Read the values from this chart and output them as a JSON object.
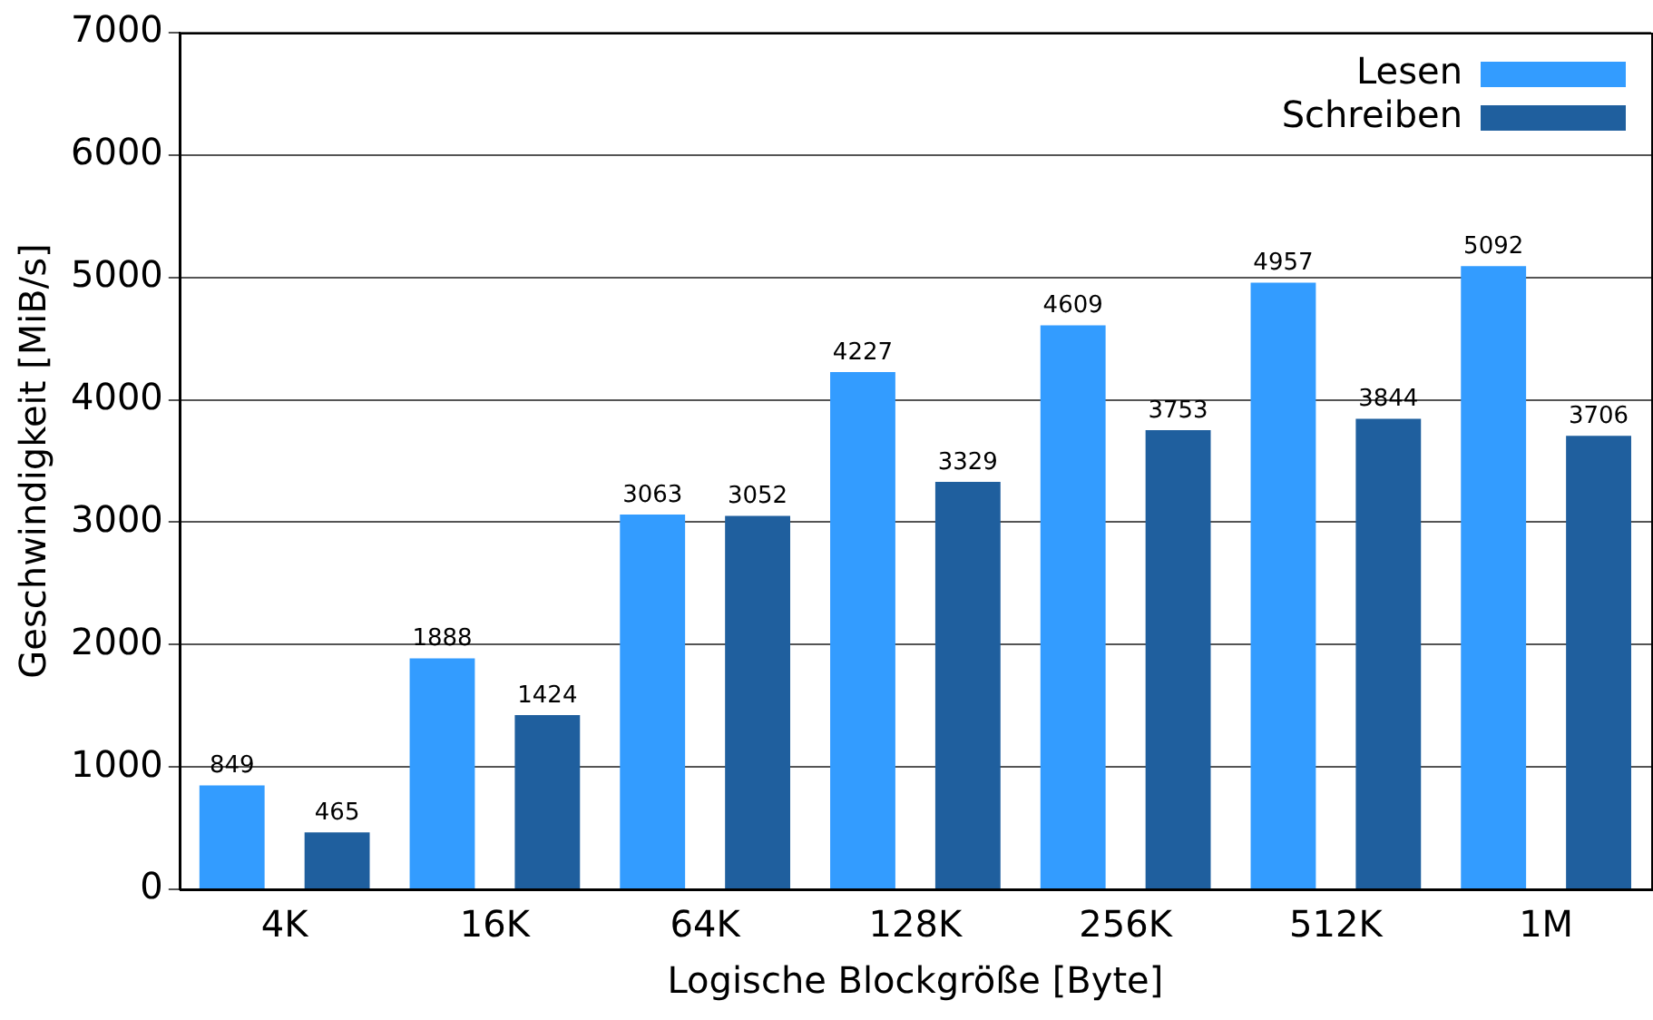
{
  "chart_data": {
    "type": "bar",
    "xlabel": "Logische Blockgröße [Byte]",
    "ylabel": "Geschwindigkeit [MiB/s]",
    "categories": [
      "4K",
      "16K",
      "64K",
      "128K",
      "256K",
      "512K",
      "1M"
    ],
    "series": [
      {
        "name": "Lesen",
        "color": "#339cff",
        "values": [
          849,
          1888,
          3063,
          4227,
          4609,
          4957,
          5092
        ]
      },
      {
        "name": "Schreiben",
        "color": "#1f5f9e",
        "values": [
          465,
          1424,
          3052,
          3329,
          3753,
          3844,
          3706
        ]
      }
    ],
    "ylim": [
      0,
      7000
    ],
    "yticks": [
      0,
      1000,
      2000,
      3000,
      4000,
      5000,
      6000,
      7000
    ],
    "grid": "y",
    "legend": "top right",
    "data_labels": true
  }
}
